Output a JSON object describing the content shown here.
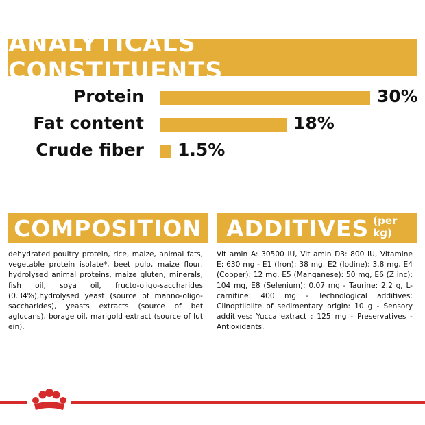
{
  "colors": {
    "accent": "#e4ae38",
    "brand_red": "#d62b2b",
    "text": "#111111"
  },
  "analytical": {
    "title": "ANALYTICALS CONSTITUENTS",
    "rows": [
      {
        "label": "Protein",
        "value": 30,
        "display": "30%"
      },
      {
        "label": "Fat content",
        "value": 18,
        "display": "18%"
      },
      {
        "label": "Crude fiber",
        "value": 1.5,
        "display": "1.5%"
      }
    ]
  },
  "composition": {
    "title": "COMPOSITION",
    "text": "dehydrated poultry protein, rice, maize, animal fats, vegetable protein isolate*, beet pulp, maize flour, hydrolysed animal proteins, maize gluten, minerals, fish oil, soya oil, fructo-oligo-saccharides (0.34%),hydrolysed yeast (source of manno-oligo-saccharides), yeasts extracts (source of bet aglucans), borage oil, marigold extract (source of lut ein)."
  },
  "additives": {
    "title": "ADDITIVES",
    "title_suffix": "(per kg)",
    "text": "Vit amin A: 30500 IU, Vit amin D3: 800 IU, Vitamine E: 630 mg - E1 (Iron): 38 mg, E2 (Iodine): 3.8 mg, E4 (Copper): 12 mg, E5 (Manganese): 50 mg, E6 (Z inc): 104 mg, E8 (Selenium): 0.07 mg - Taurine: 2.2 g, L-carnitine: 400 mg - Technological additives: Clinoptilolite of sedimentary origin: 10 g - Sensory additives: Yucca extract : 125 mg - Preservatives -Antioxidants."
  },
  "footer": {
    "logo_icon": "crown-icon"
  }
}
